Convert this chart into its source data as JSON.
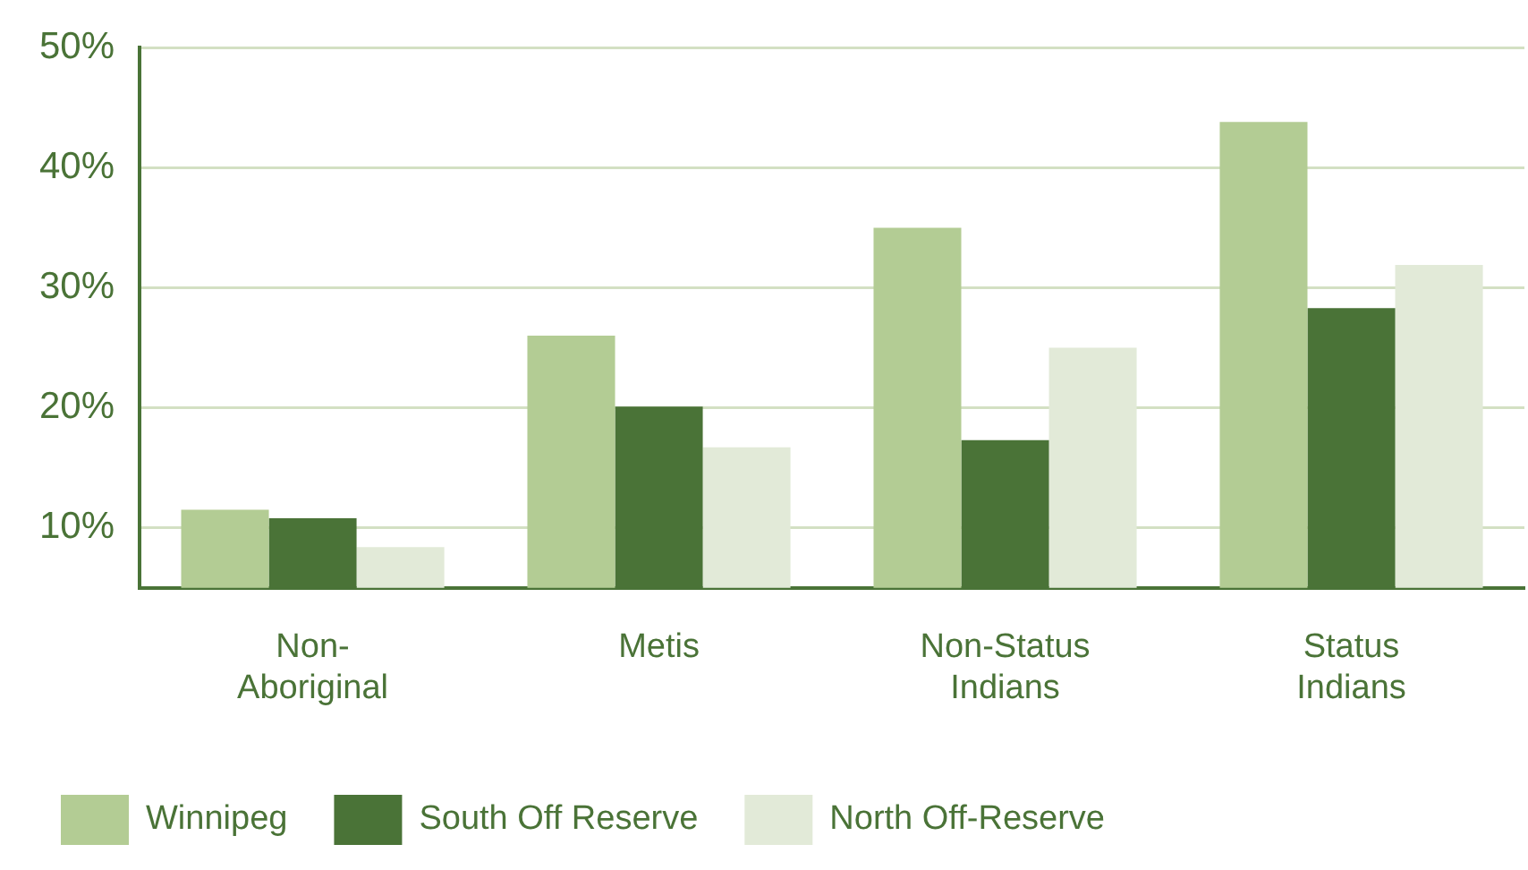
{
  "chart_data": {
    "type": "bar",
    "categories": [
      "Non-Aboriginal",
      "Metis",
      "Non-Status Indians",
      "Status Indians"
    ],
    "series": [
      {
        "name": "Winnipeg",
        "color": "#b3cc94",
        "values": [
          11.5,
          26,
          35,
          43.8
        ]
      },
      {
        "name": "South Off Reserve",
        "color": "#4a7337",
        "values": [
          10.8,
          20.1,
          17.3,
          28.3
        ]
      },
      {
        "name": "North Off-Reserve",
        "color": "#e2ead8",
        "values": [
          8.4,
          16.7,
          25,
          31.9
        ]
      }
    ],
    "ylim": [
      5,
      50
    ],
    "yticks": [
      {
        "value": 10,
        "label": "10%"
      },
      {
        "value": 20,
        "label": "20%"
      },
      {
        "value": 30,
        "label": "30%"
      },
      {
        "value": 40,
        "label": "40%"
      },
      {
        "value": 50,
        "label": "50%"
      }
    ],
    "grid": "y",
    "legend": "bottom"
  }
}
